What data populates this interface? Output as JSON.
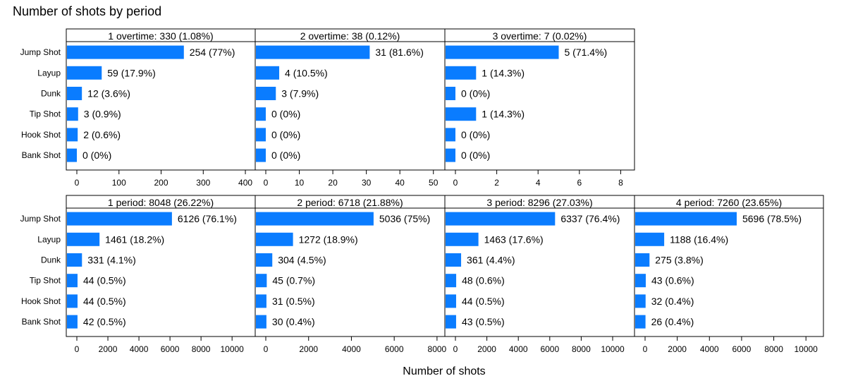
{
  "title": "Number of shots by period",
  "xlabel": "Number of shots",
  "colors": {
    "bar": "#0A7CFF",
    "frame": "#000000",
    "text": "#000000"
  },
  "categories": [
    "Jump Shot",
    "Layup",
    "Dunk",
    "Tip Shot",
    "Hook Shot",
    "Bank Shot"
  ],
  "chart_data": [
    {
      "type": "bar",
      "orientation": "horizontal",
      "title": "1 overtime: 330 (1.08%)",
      "values": [
        254,
        59,
        12,
        3,
        2,
        0
      ],
      "labels": [
        "254 (77%)",
        "59 (17.9%)",
        "12 (3.6%)",
        "3 (0.9%)",
        "2 (0.6%)",
        "0 (0%)"
      ],
      "ticks": [
        0,
        100,
        200,
        300,
        400
      ],
      "xlim": [
        0,
        420
      ]
    },
    {
      "type": "bar",
      "orientation": "horizontal",
      "title": "2 overtime: 38 (0.12%)",
      "values": [
        31,
        4,
        3,
        0,
        0,
        0
      ],
      "labels": [
        "31 (81.6%)",
        "4 (10.5%)",
        "3 (7.9%)",
        "0 (0%)",
        "0 (0%)",
        "0 (0%)"
      ],
      "ticks": [
        0,
        10,
        20,
        30,
        40,
        50
      ],
      "xlim": [
        0,
        53
      ]
    },
    {
      "type": "bar",
      "orientation": "horizontal",
      "title": "3 overtime: 7 (0.02%)",
      "values": [
        5,
        1,
        0,
        1,
        0,
        0
      ],
      "labels": [
        "5 (71.4%)",
        "1 (14.3%)",
        "0 (0%)",
        "1 (14.3%)",
        "0 (0%)",
        "0 (0%)"
      ],
      "ticks": [
        0,
        2,
        4,
        6,
        8
      ],
      "xlim": [
        0,
        8.6
      ]
    },
    {
      "type": "bar",
      "orientation": "horizontal",
      "title": "1 period: 8048 (26.22%)",
      "values": [
        6126,
        1461,
        331,
        44,
        44,
        42
      ],
      "labels": [
        "6126 (76.1%)",
        "1461 (18.2%)",
        "331 (4.1%)",
        "44 (0.5%)",
        "44 (0.5%)",
        "42 (0.5%)"
      ],
      "ticks": [
        0,
        2000,
        4000,
        6000,
        8000,
        10000
      ],
      "xlim": [
        0,
        11400
      ]
    },
    {
      "type": "bar",
      "orientation": "horizontal",
      "title": "2 period: 6718 (21.88%)",
      "values": [
        5036,
        1272,
        304,
        45,
        31,
        30
      ],
      "labels": [
        "5036 (75%)",
        "1272 (18.9%)",
        "304 (4.5%)",
        "45 (0.7%)",
        "31 (0.5%)",
        "30 (0.4%)"
      ],
      "ticks": [
        0,
        2000,
        4000,
        6000,
        8000
      ],
      "xlim": [
        0,
        8300
      ]
    },
    {
      "type": "bar",
      "orientation": "horizontal",
      "title": "3 period: 8296 (27.03%)",
      "values": [
        6337,
        1463,
        361,
        48,
        44,
        43
      ],
      "labels": [
        "6337 (76.4%)",
        "1463 (17.6%)",
        "361 (4.4%)",
        "48 (0.6%)",
        "44 (0.5%)",
        "43 (0.5%)"
      ],
      "ticks": [
        0,
        2000,
        4000,
        6000,
        8000,
        10000
      ],
      "xlim": [
        0,
        11300
      ]
    },
    {
      "type": "bar",
      "orientation": "horizontal",
      "title": "4 period: 7260 (23.65%)",
      "values": [
        5696,
        1188,
        275,
        43,
        32,
        26
      ],
      "labels": [
        "5696 (78.5%)",
        "1188 (16.4%)",
        "275 (3.8%)",
        "43 (0.6%)",
        "32 (0.4%)",
        "26 (0.4%)"
      ],
      "ticks": [
        0,
        2000,
        4000,
        6000,
        8000,
        10000
      ],
      "xlim": [
        0,
        11000
      ]
    }
  ]
}
